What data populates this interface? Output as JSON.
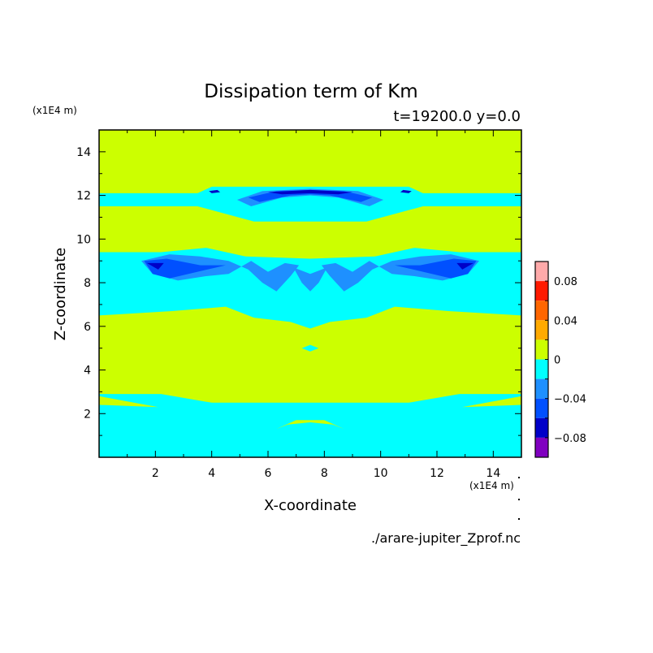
{
  "chart_data": {
    "type": "heatmap",
    "title": "Dissipation term of Km",
    "subtitle": "t=19200.0 y=0.0",
    "xlabel": "X-coordinate",
    "ylabel": "Z-coordinate",
    "x_unit": "(x1E4 m)",
    "y_unit": "(x1E4 m)",
    "source": "./arare-jupiter_Zprof.nc",
    "xlim": [
      0,
      15
    ],
    "ylim": [
      0,
      15
    ],
    "x_ticks": [
      "2",
      "4",
      "6",
      "8",
      "10",
      "12",
      "14"
    ],
    "y_ticks": [
      "2",
      "4",
      "6",
      "8",
      "10",
      "12",
      "14"
    ],
    "background_level_color": "#ccff00",
    "levels": [
      {
        "lo": 0.08,
        "hi": 0.1,
        "color": "#ffaaaa"
      },
      {
        "lo": 0.06,
        "hi": 0.08,
        "color": "#ff1a00"
      },
      {
        "lo": 0.04,
        "hi": 0.06,
        "color": "#ff6600"
      },
      {
        "lo": 0.02,
        "hi": 0.04,
        "color": "#ffaa00"
      },
      {
        "lo": 0.0,
        "hi": 0.02,
        "color": "#ccff00"
      },
      {
        "lo": -0.02,
        "hi": 0.0,
        "color": "#00ffff"
      },
      {
        "lo": -0.04,
        "hi": -0.02,
        "color": "#1e90ff"
      },
      {
        "lo": -0.06,
        "hi": -0.04,
        "color": "#0050ff"
      },
      {
        "lo": -0.08,
        "hi": -0.06,
        "color": "#0000c8"
      },
      {
        "lo": -0.1,
        "hi": -0.08,
        "color": "#8000c0"
      }
    ],
    "colorbar_ticks": [
      "0.08",
      "0.04",
      "0",
      "−0.04",
      "−0.08"
    ],
    "regions": [
      {
        "name": "bottom-band",
        "level": -0.01,
        "color": "#00ffff",
        "points": [
          [
            0,
            0
          ],
          [
            15,
            0
          ],
          [
            15,
            2.9
          ],
          [
            12.8,
            2.9
          ],
          [
            11,
            2.5
          ],
          [
            4,
            2.5
          ],
          [
            2.2,
            2.9
          ],
          [
            0,
            2.9
          ]
        ]
      },
      {
        "name": "bottom-right-wedge",
        "level": 0.01,
        "color": "#ccff00",
        "points": [
          [
            12.9,
            2.3
          ],
          [
            15,
            2.8
          ],
          [
            15,
            2.4
          ]
        ]
      },
      {
        "name": "bottom-left-wedge",
        "level": 0.01,
        "color": "#ccff00",
        "points": [
          [
            0,
            2.8
          ],
          [
            2.1,
            2.3
          ],
          [
            0,
            2.4
          ]
        ]
      },
      {
        "name": "bottom-center-bump",
        "level": 0.01,
        "color": "#ccff00",
        "points": [
          [
            6.3,
            1.3
          ],
          [
            7.0,
            1.7
          ],
          [
            8.0,
            1.7
          ],
          [
            8.7,
            1.3
          ],
          [
            8.3,
            1.5
          ],
          [
            7.5,
            1.6
          ],
          [
            6.7,
            1.5
          ]
        ]
      },
      {
        "name": "middle-band",
        "level": -0.01,
        "color": "#00ffff",
        "points": [
          [
            0,
            6.5
          ],
          [
            2.6,
            6.7
          ],
          [
            4.5,
            6.9
          ],
          [
            5.5,
            6.4
          ],
          [
            6.8,
            6.2
          ],
          [
            7.5,
            5.9
          ],
          [
            8.2,
            6.2
          ],
          [
            9.5,
            6.4
          ],
          [
            10.5,
            6.9
          ],
          [
            12.4,
            6.7
          ],
          [
            15,
            6.5
          ],
          [
            15,
            9.4
          ],
          [
            12.8,
            9.4
          ],
          [
            11.2,
            9.6
          ],
          [
            9.8,
            9.2
          ],
          [
            7.5,
            9.1
          ],
          [
            5.2,
            9.2
          ],
          [
            3.8,
            9.6
          ],
          [
            2.2,
            9.4
          ],
          [
            0,
            9.4
          ]
        ]
      },
      {
        "name": "middle-left-arm",
        "level": -0.03,
        "color": "#1e90ff",
        "points": [
          [
            1.5,
            9.0
          ],
          [
            2.5,
            9.3
          ],
          [
            3.6,
            9.2
          ],
          [
            4.6,
            9.0
          ],
          [
            5.3,
            8.6
          ],
          [
            5.8,
            8.0
          ],
          [
            6.3,
            7.6
          ],
          [
            6.8,
            8.3
          ],
          [
            7.1,
            8.8
          ],
          [
            6.6,
            8.9
          ],
          [
            6.0,
            8.5
          ],
          [
            5.4,
            9.0
          ],
          [
            4.6,
            8.4
          ],
          [
            3.8,
            8.3
          ],
          [
            2.8,
            8.1
          ],
          [
            1.9,
            8.4
          ]
        ]
      },
      {
        "name": "middle-right-arm",
        "level": -0.03,
        "color": "#1e90ff",
        "points": [
          [
            13.5,
            9.0
          ],
          [
            12.5,
            9.3
          ],
          [
            11.4,
            9.2
          ],
          [
            10.4,
            9.0
          ],
          [
            9.7,
            8.6
          ],
          [
            9.2,
            8.0
          ],
          [
            8.7,
            7.6
          ],
          [
            8.2,
            8.3
          ],
          [
            7.9,
            8.8
          ],
          [
            8.4,
            8.9
          ],
          [
            9.0,
            8.5
          ],
          [
            9.6,
            9.0
          ],
          [
            10.4,
            8.4
          ],
          [
            11.2,
            8.3
          ],
          [
            12.2,
            8.1
          ],
          [
            13.1,
            8.4
          ]
        ]
      },
      {
        "name": "middle-center-lobe",
        "level": -0.03,
        "color": "#1e90ff",
        "points": [
          [
            6.9,
            8.7
          ],
          [
            7.2,
            8.0
          ],
          [
            7.5,
            7.6
          ],
          [
            7.8,
            8.0
          ],
          [
            8.1,
            8.7
          ],
          [
            7.5,
            8.4
          ]
        ]
      },
      {
        "name": "middle-left-core",
        "level": -0.05,
        "color": "#0050ff",
        "points": [
          [
            1.6,
            9.0
          ],
          [
            2.4,
            9.1
          ],
          [
            3.6,
            8.8
          ],
          [
            4.5,
            8.8
          ],
          [
            3.5,
            8.5
          ],
          [
            2.5,
            8.2
          ],
          [
            1.9,
            8.4
          ]
        ]
      },
      {
        "name": "middle-right-core",
        "level": -0.05,
        "color": "#0050ff",
        "points": [
          [
            13.4,
            9.0
          ],
          [
            12.6,
            9.1
          ],
          [
            11.4,
            8.8
          ],
          [
            10.5,
            8.8
          ],
          [
            11.5,
            8.5
          ],
          [
            12.5,
            8.2
          ],
          [
            13.1,
            8.4
          ]
        ]
      },
      {
        "name": "middle-left-dark",
        "level": -0.07,
        "color": "#0000c8",
        "points": [
          [
            1.7,
            8.9
          ],
          [
            2.3,
            8.9
          ],
          [
            2.1,
            8.6
          ]
        ]
      },
      {
        "name": "middle-right-dark",
        "level": -0.07,
        "color": "#0000c8",
        "points": [
          [
            13.3,
            8.9
          ],
          [
            12.7,
            8.9
          ],
          [
            12.9,
            8.6
          ]
        ]
      },
      {
        "name": "middle-center-blob",
        "level": -0.01,
        "color": "#00ffff",
        "points": [
          [
            7.2,
            5.0
          ],
          [
            7.5,
            4.85
          ],
          [
            7.8,
            5.0
          ],
          [
            7.5,
            5.15
          ]
        ]
      },
      {
        "name": "upper-band",
        "level": -0.01,
        "color": "#00ffff",
        "points": [
          [
            0,
            11.5
          ],
          [
            3.5,
            11.5
          ],
          [
            5.5,
            10.8
          ],
          [
            9.5,
            10.8
          ],
          [
            11.5,
            11.5
          ],
          [
            15,
            11.5
          ],
          [
            15,
            12.1
          ],
          [
            11.5,
            12.1
          ],
          [
            11,
            12.4
          ],
          [
            4,
            12.4
          ],
          [
            3.5,
            12.1
          ],
          [
            0,
            12.1
          ]
        ]
      },
      {
        "name": "upper-arc",
        "level": -0.03,
        "color": "#1e90ff",
        "points": [
          [
            4.9,
            11.8
          ],
          [
            5.8,
            12.2
          ],
          [
            7.5,
            12.3
          ],
          [
            9.2,
            12.2
          ],
          [
            10.1,
            11.8
          ],
          [
            9.6,
            11.5
          ],
          [
            8.5,
            11.9
          ],
          [
            7.5,
            12.0
          ],
          [
            6.5,
            11.9
          ],
          [
            5.4,
            11.5
          ]
        ]
      },
      {
        "name": "upper-arc-core",
        "level": -0.05,
        "color": "#0050ff",
        "points": [
          [
            5.3,
            11.9
          ],
          [
            6.3,
            12.2
          ],
          [
            7.5,
            12.25
          ],
          [
            8.7,
            12.2
          ],
          [
            9.7,
            11.9
          ],
          [
            9.3,
            11.7
          ],
          [
            8.2,
            12.0
          ],
          [
            7.5,
            12.05
          ],
          [
            6.8,
            12.0
          ],
          [
            5.7,
            11.7
          ]
        ]
      },
      {
        "name": "upper-arc-dark",
        "level": -0.07,
        "color": "#0000c8",
        "points": [
          [
            6.0,
            12.15
          ],
          [
            7.5,
            12.25
          ],
          [
            9.0,
            12.15
          ],
          [
            8.5,
            12.05
          ],
          [
            7.5,
            12.1
          ],
          [
            6.5,
            12.05
          ]
        ]
      },
      {
        "name": "upper-left-dot",
        "level": -0.07,
        "color": "#0000c8",
        "points": [
          [
            3.9,
            12.2
          ],
          [
            4.2,
            12.25
          ],
          [
            4.3,
            12.15
          ],
          [
            4.0,
            12.1
          ]
        ]
      },
      {
        "name": "upper-right-dot",
        "level": -0.07,
        "color": "#0000c8",
        "points": [
          [
            11.1,
            12.2
          ],
          [
            10.8,
            12.25
          ],
          [
            10.7,
            12.15
          ],
          [
            11.0,
            12.1
          ]
        ]
      }
    ]
  }
}
